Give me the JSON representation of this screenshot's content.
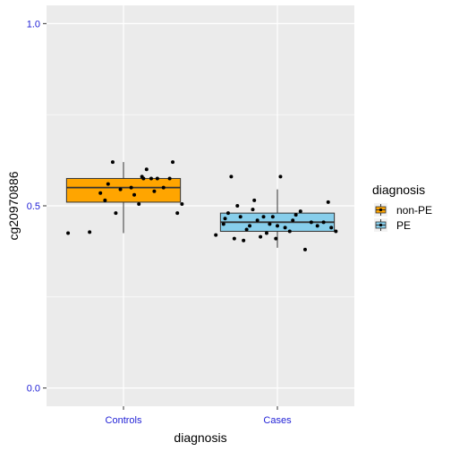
{
  "chart_data": {
    "type": "boxplot",
    "xlabel": "diagnosis",
    "ylabel": "cg20970886",
    "ylim": [
      -0.05,
      1.05
    ],
    "y_ticks": [
      0.0,
      0.5,
      1.0
    ],
    "y_tick_labels": [
      "0.0",
      "0.5",
      "1.0"
    ],
    "categories": [
      "Controls",
      "Cases"
    ],
    "legend": {
      "title": "diagnosis",
      "placement": "right",
      "entries": [
        {
          "label": "non-PE",
          "color": "#FFA500"
        },
        {
          "label": "PE",
          "color": "#87CEEB"
        }
      ]
    },
    "boxes": [
      {
        "category": "Controls",
        "group": "non-PE",
        "color": "#FFA500",
        "whisker_low": 0.425,
        "q1": 0.51,
        "median": 0.55,
        "q3": 0.575,
        "whisker_high": 0.62,
        "points": [
          [
            -0.36,
            0.425
          ],
          [
            -0.22,
            0.428
          ],
          [
            -0.15,
            0.535
          ],
          [
            -0.1,
            0.56
          ],
          [
            -0.07,
            0.62
          ],
          [
            -0.05,
            0.48
          ],
          [
            0.05,
            0.55
          ],
          [
            0.07,
            0.53
          ],
          [
            0.1,
            0.505
          ],
          [
            0.12,
            0.58
          ],
          [
            0.13,
            0.575
          ],
          [
            0.15,
            0.6
          ],
          [
            0.18,
            0.575
          ],
          [
            0.22,
            0.575
          ],
          [
            0.3,
            0.575
          ],
          [
            0.32,
            0.62
          ],
          [
            0.35,
            0.48
          ],
          [
            0.38,
            0.505
          ],
          [
            -0.12,
            0.515
          ],
          [
            0.2,
            0.54
          ],
          [
            0.26,
            0.55
          ],
          [
            -0.02,
            0.545
          ]
        ]
      },
      {
        "category": "Cases",
        "group": "PE",
        "color": "#87CEEB",
        "whisker_low": 0.385,
        "q1": 0.43,
        "median": 0.455,
        "q3": 0.48,
        "whisker_high": 0.545,
        "points": [
          [
            -0.4,
            0.42
          ],
          [
            -0.35,
            0.45
          ],
          [
            -0.32,
            0.48
          ],
          [
            -0.3,
            0.58
          ],
          [
            -0.28,
            0.41
          ],
          [
            -0.26,
            0.5
          ],
          [
            -0.24,
            0.47
          ],
          [
            -0.22,
            0.405
          ],
          [
            -0.2,
            0.435
          ],
          [
            -0.18,
            0.445
          ],
          [
            -0.16,
            0.49
          ],
          [
            -0.15,
            0.515
          ],
          [
            -0.13,
            0.46
          ],
          [
            -0.11,
            0.415
          ],
          [
            -0.09,
            0.47
          ],
          [
            -0.07,
            0.425
          ],
          [
            -0.05,
            0.45
          ],
          [
            -0.03,
            0.47
          ],
          [
            0.0,
            0.445
          ],
          [
            0.02,
            0.58
          ],
          [
            0.05,
            0.44
          ],
          [
            0.08,
            0.43
          ],
          [
            0.12,
            0.475
          ],
          [
            0.15,
            0.485
          ],
          [
            0.18,
            0.38
          ],
          [
            0.22,
            0.455
          ],
          [
            0.26,
            0.445
          ],
          [
            0.3,
            0.455
          ],
          [
            0.33,
            0.51
          ],
          [
            0.38,
            0.43
          ],
          [
            -0.34,
            0.465
          ],
          [
            0.1,
            0.46
          ],
          [
            -0.01,
            0.41
          ],
          [
            0.35,
            0.44
          ]
        ]
      }
    ]
  }
}
